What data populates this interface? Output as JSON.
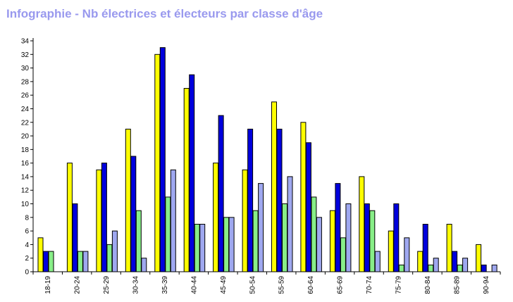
{
  "title": "Infographie - Nb électrices et électeurs par classe d'âge",
  "colors": {
    "title": "#9999ee",
    "series": [
      "#ffff00",
      "#0000dd",
      "#88ee88",
      "#9fa8f0"
    ],
    "axis": "#000000"
  },
  "chart_data": {
    "type": "bar",
    "title": "Infographie - Nb électrices et électeurs par classe d'âge",
    "xlabel": "",
    "ylabel": "",
    "ylim": [
      0,
      34
    ],
    "ytick_step": 2,
    "grid": false,
    "legend": "none",
    "categories": [
      "18-19",
      "20-24",
      "25-29",
      "30-34",
      "35-39",
      "40-44",
      "45-49",
      "50-54",
      "55-59",
      "60-64",
      "65-69",
      "70-74",
      "75-79",
      "80-84",
      "85-89",
      "90-94"
    ],
    "series": [
      {
        "color": "#ffff00",
        "values": [
          5,
          16,
          15,
          21,
          32,
          27,
          16,
          15,
          25,
          22,
          9,
          14,
          6,
          3,
          7,
          4
        ]
      },
      {
        "color": "#0000dd",
        "values": [
          3,
          10,
          16,
          17,
          33,
          29,
          23,
          21,
          21,
          19,
          13,
          10,
          10,
          7,
          3,
          1
        ]
      },
      {
        "color": "#88ee88",
        "values": [
          3,
          3,
          4,
          9,
          11,
          7,
          8,
          9,
          10,
          11,
          5,
          9,
          1,
          1,
          1,
          0
        ]
      },
      {
        "color": "#9fa8f0",
        "values": [
          0,
          3,
          6,
          2,
          15,
          7,
          8,
          13,
          14,
          8,
          10,
          3,
          5,
          2,
          2,
          1
        ]
      }
    ]
  }
}
